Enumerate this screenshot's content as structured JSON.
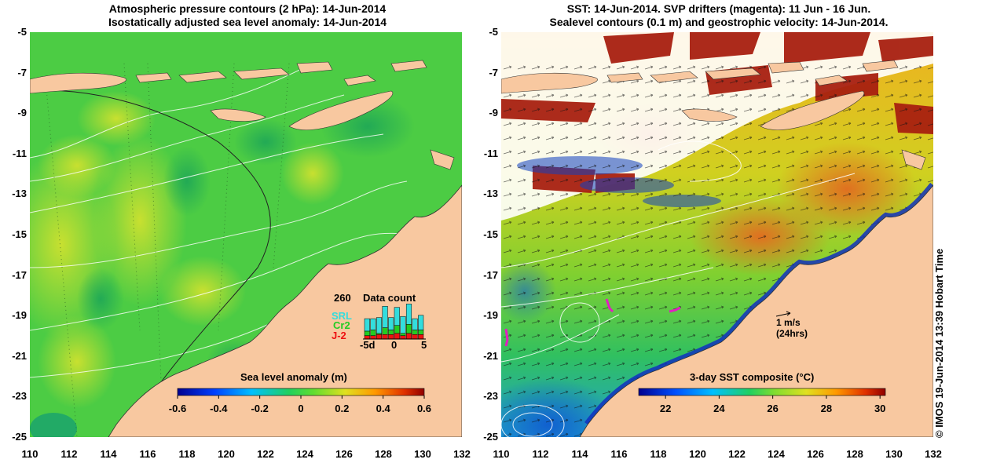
{
  "left_panel": {
    "title_line1": "Atmospheric pressure contours (2 hPa): 14-Jun-2014",
    "title_line2": "Isostatically adjusted sea level anomaly: 14-Jun-2014",
    "colorbar": {
      "title": "Sea level anomaly (m)",
      "min": -0.6,
      "max": 0.6,
      "ticks": [
        "-0.6",
        "-0.4",
        "-0.2",
        "0",
        "0.2",
        "0.4",
        "0.6"
      ]
    },
    "data_count": {
      "title": "Data count",
      "max_label": "260",
      "satellites": [
        {
          "name": "SRL",
          "color": "#33dddd"
        },
        {
          "name": "Cr2",
          "color": "#22cc22"
        },
        {
          "name": "J-2",
          "color": "#ee1111"
        }
      ],
      "x_labels": [
        "-5d",
        "0",
        "5"
      ],
      "bars": [
        {
          "srl": 0.55,
          "cr2": 0.2,
          "j2": 0.15
        },
        {
          "srl": 0.5,
          "cr2": 0.25,
          "j2": 0.15
        },
        {
          "srl": 0.7,
          "cr2": 0.05,
          "j2": 0.2
        },
        {
          "srl": 0.95,
          "cr2": 0.3,
          "j2": 0.2
        },
        {
          "srl": 0.55,
          "cr2": 0.2,
          "j2": 0.2
        },
        {
          "srl": 0.8,
          "cr2": 0.35,
          "j2": 0.25
        },
        {
          "srl": 0.75,
          "cr2": 0.1,
          "j2": 0.15
        },
        {
          "srl": 0.9,
          "cr2": 0.4,
          "j2": 0.25
        },
        {
          "srl": 0.5,
          "cr2": 0.2,
          "j2": 0.2
        },
        {
          "srl": 0.65,
          "cr2": 0.2,
          "j2": 0.2
        }
      ]
    }
  },
  "right_panel": {
    "title_line1": "SST: 14-Jun-2014. SVP drifters (magenta): 11 Jun - 16 Jun.",
    "title_line2": "Sealevel contours (0.1 m) and geostrophic velocity: 14-Jun-2014.",
    "scale_arrow_label": "1 m/s",
    "scale_arrow_sub": "(24hrs)",
    "colorbar": {
      "title": "3-day SST composite (°C)",
      "min": 21,
      "max": 30.2,
      "ticks": [
        "22",
        "24",
        "26",
        "28",
        "30"
      ]
    }
  },
  "y_axis_labels": [
    "-5",
    "-7",
    "-9",
    "-11",
    "-13",
    "-15",
    "-17",
    "-19",
    "-21",
    "-23",
    "-25"
  ],
  "x_axis_labels": [
    "110",
    "112",
    "114",
    "116",
    "118",
    "120",
    "122",
    "124",
    "126",
    "128",
    "130",
    "132"
  ],
  "credit": "© IMOS 19-Jun-2014 13:39 Hobart Time",
  "colors": {
    "land": "#f8c8a0",
    "ocean_green": "#44cc44",
    "background": "#ffffff"
  }
}
